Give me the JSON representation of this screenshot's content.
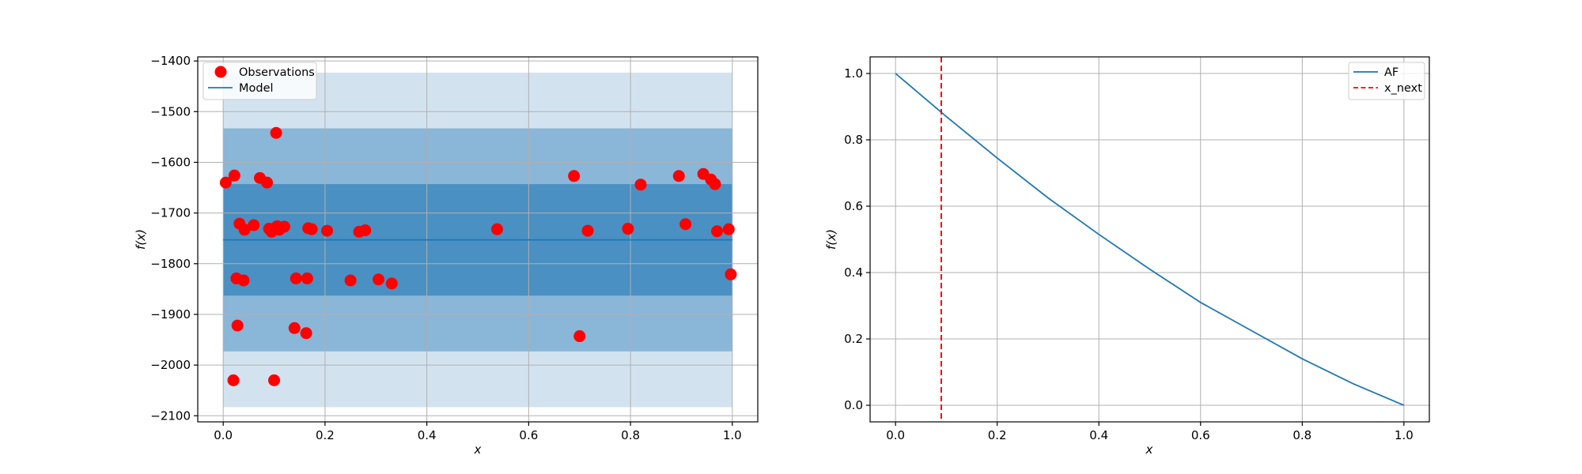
{
  "chart_data": [
    {
      "type": "scatter",
      "xlabel": "x",
      "ylabel": "f(x)",
      "xlim": [
        -0.05,
        1.05
      ],
      "ylim": [
        -2112,
        -1392
      ],
      "xticks": [
        0.0,
        0.2,
        0.4,
        0.6,
        0.8,
        1.0
      ],
      "xtick_labels": [
        "0.0",
        "0.2",
        "0.4",
        "0.6",
        "0.8",
        "1.0"
      ],
      "yticks": [
        -2100,
        -2000,
        -1900,
        -1800,
        -1700,
        -1600,
        -1500,
        -1400
      ],
      "ytick_labels": [
        "−2100",
        "−2000",
        "−1900",
        "−1800",
        "−1700",
        "−1600",
        "−1500",
        "−1400"
      ],
      "grid": true,
      "legend_position": "top-left",
      "legend": [
        "Observations",
        "Model"
      ],
      "model": {
        "x": [
          0.0,
          1.0
        ],
        "mean": -1753
      },
      "bands": [
        {
          "lower": -2083,
          "upper": -1423,
          "color": "#d2e3ef"
        },
        {
          "lower": -1973,
          "upper": -1533,
          "color": "#8ab6d8"
        },
        {
          "lower": -1863,
          "upper": -1643,
          "color": "#4a90c3"
        }
      ],
      "series": [
        {
          "name": "Observations",
          "color": "#ff0000",
          "points": [
            [
              0.005,
              -1640
            ],
            [
              0.022,
              -1626
            ],
            [
              0.026,
              -1829
            ],
            [
              0.028,
              -1922
            ],
            [
              0.032,
              -1721
            ],
            [
              0.04,
              -1833
            ],
            [
              0.042,
              -1733
            ],
            [
              0.06,
              -1724
            ],
            [
              0.072,
              -1631
            ],
            [
              0.086,
              -1640
            ],
            [
              0.09,
              -1731
            ],
            [
              0.095,
              -1737
            ],
            [
              0.104,
              -1542
            ],
            [
              0.106,
              -1726
            ],
            [
              0.11,
              -1733
            ],
            [
              0.12,
              -1727
            ],
            [
              0.14,
              -1927
            ],
            [
              0.143,
              -1829
            ],
            [
              0.163,
              -1937
            ],
            [
              0.165,
              -1829
            ],
            [
              0.167,
              -1730
            ],
            [
              0.174,
              -1732
            ],
            [
              0.204,
              -1735
            ],
            [
              0.25,
              -1833
            ],
            [
              0.267,
              -1737
            ],
            [
              0.279,
              -1734
            ],
            [
              0.305,
              -1831
            ],
            [
              0.331,
              -1839
            ],
            [
              0.538,
              -1732
            ],
            [
              0.689,
              -1627
            ],
            [
              0.7,
              -1943
            ],
            [
              0.716,
              -1735
            ],
            [
              0.795,
              -1731
            ],
            [
              0.82,
              -1644
            ],
            [
              0.895,
              -1627
            ],
            [
              0.908,
              -1722
            ],
            [
              0.943,
              -1623
            ],
            [
              0.958,
              -1634
            ],
            [
              0.966,
              -1643
            ],
            [
              0.97,
              -1736
            ],
            [
              0.993,
              -1732
            ],
            [
              0.997,
              -1821
            ],
            [
              0.02,
              -2030
            ],
            [
              0.1,
              -2030
            ]
          ]
        },
        {
          "name": "Model",
          "color": "#1f77b4"
        }
      ]
    },
    {
      "type": "line",
      "xlabel": "x",
      "ylabel": "f(x)",
      "xlim": [
        -0.05,
        1.05
      ],
      "ylim": [
        -0.05,
        1.05
      ],
      "xticks": [
        0.0,
        0.2,
        0.4,
        0.6,
        0.8,
        1.0
      ],
      "xtick_labels": [
        "0.0",
        "0.2",
        "0.4",
        "0.6",
        "0.8",
        "1.0"
      ],
      "yticks": [
        0.0,
        0.2,
        0.4,
        0.6,
        0.8,
        1.0
      ],
      "ytick_labels": [
        "0.0",
        "0.2",
        "0.4",
        "0.6",
        "0.8",
        "1.0"
      ],
      "grid": true,
      "legend_position": "top-right",
      "legend": [
        "AF",
        "x_next"
      ],
      "series": [
        {
          "name": "AF",
          "color": "#1f77b4",
          "x": [
            0.0,
            0.1,
            0.2,
            0.3,
            0.4,
            0.5,
            0.6,
            0.7,
            0.8,
            0.9,
            1.0
          ],
          "y": [
            1.0,
            0.87,
            0.745,
            0.625,
            0.515,
            0.41,
            0.31,
            0.225,
            0.14,
            0.065,
            0.0
          ]
        },
        {
          "name": "x_next",
          "color": "#ff0000",
          "x_value": 0.09
        }
      ]
    }
  ]
}
